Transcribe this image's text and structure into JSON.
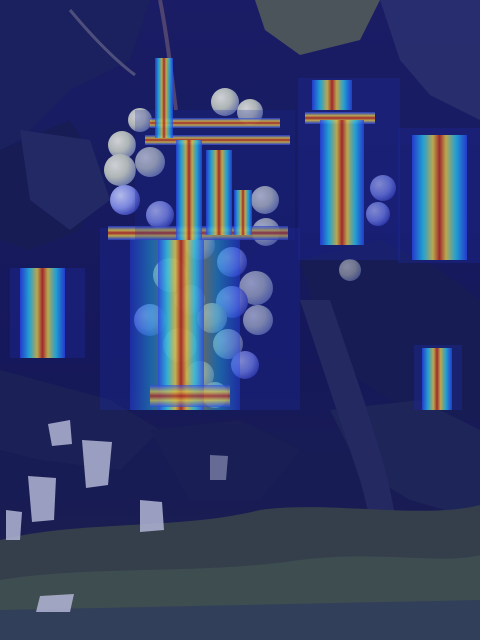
{
  "image": {
    "description_free": true,
    "palette": {
      "overlay_base": "#12145a",
      "heat_red": "#c62a12",
      "heat_orange": "#ff8c1a",
      "heat_yellow": "#ffe23a",
      "heat_cyan": "#27e3ff",
      "heat_blue": "#2a4cff",
      "grape_pale": "#e9edd8",
      "leaf_dark": "#18224a",
      "trunk": "#1f2454",
      "ground": "#3b4a3d",
      "bags": "#d8dbe9"
    }
  }
}
